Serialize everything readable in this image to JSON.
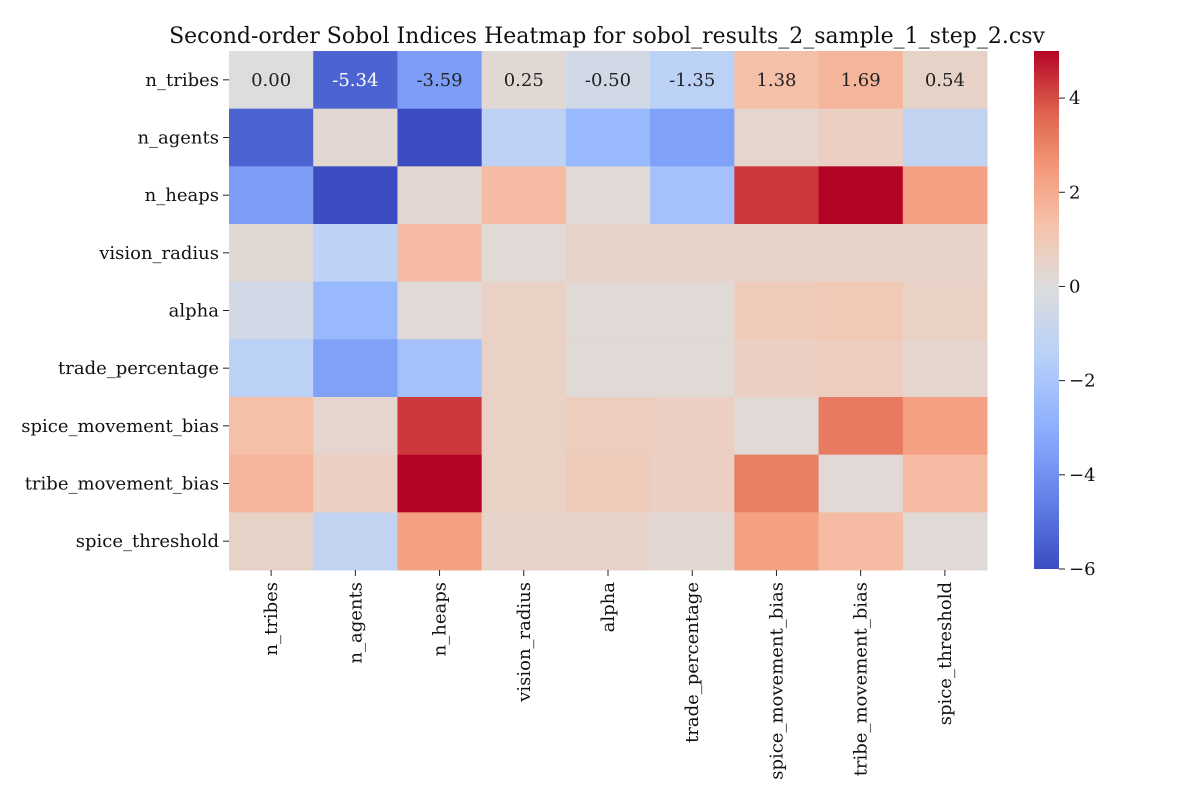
{
  "chart_data": {
    "type": "heatmap",
    "title": "Second-order Sobol Indices Heatmap for sobol_results_2_sample_1_step_2.csv",
    "x_categories": [
      "n_tribes",
      "n_agents",
      "n_heaps",
      "vision_radius",
      "alpha",
      "trade_percentage",
      "spice_movement_bias",
      "tribe_movement_bias",
      "spice_threshold"
    ],
    "y_categories": [
      "n_tribes",
      "n_agents",
      "n_heaps",
      "vision_radius",
      "alpha",
      "trade_percentage",
      "spice_movement_bias",
      "tribe_movement_bias",
      "spice_threshold"
    ],
    "values": [
      [
        0.0,
        -5.34,
        -3.59,
        0.25,
        -0.5,
        -1.35,
        1.38,
        1.69,
        0.54
      ],
      [
        -5.34,
        0.3,
        -6.0,
        -1.3,
        -2.6,
        -3.5,
        0.4,
        0.7,
        -1.1
      ],
      [
        -3.59,
        -6.0,
        0.3,
        1.5,
        0.2,
        -2.2,
        4.3,
        5.0,
        2.3
      ],
      [
        0.25,
        -1.3,
        1.5,
        0.2,
        0.5,
        0.5,
        0.5,
        0.5,
        0.5
      ],
      [
        -0.5,
        -2.6,
        0.2,
        0.6,
        0.2,
        0.2,
        0.9,
        1.0,
        0.6
      ],
      [
        -1.35,
        -3.5,
        -2.2,
        0.6,
        0.2,
        0.2,
        0.7,
        0.8,
        0.4
      ],
      [
        1.38,
        0.4,
        4.3,
        0.6,
        0.8,
        0.7,
        0.2,
        3.2,
        2.3
      ],
      [
        1.69,
        0.7,
        5.0,
        0.6,
        0.9,
        0.7,
        3.1,
        0.2,
        1.5
      ],
      [
        0.54,
        -1.1,
        2.3,
        0.5,
        0.5,
        0.3,
        2.3,
        1.5,
        0.2
      ]
    ],
    "annotated_row": 0,
    "annotations": [
      "0.00",
      "-5.34",
      "-3.59",
      "0.25",
      "-0.50",
      "-1.35",
      "1.38",
      "1.69",
      "0.54"
    ],
    "colorbar": {
      "colormap": "coolwarm",
      "vmin": -6,
      "vmax": 5,
      "ticks": [
        -6,
        -4,
        -2,
        0,
        2,
        4
      ],
      "tick_labels": [
        "−6",
        "−4",
        "−2",
        "0",
        "2",
        "4"
      ]
    }
  }
}
